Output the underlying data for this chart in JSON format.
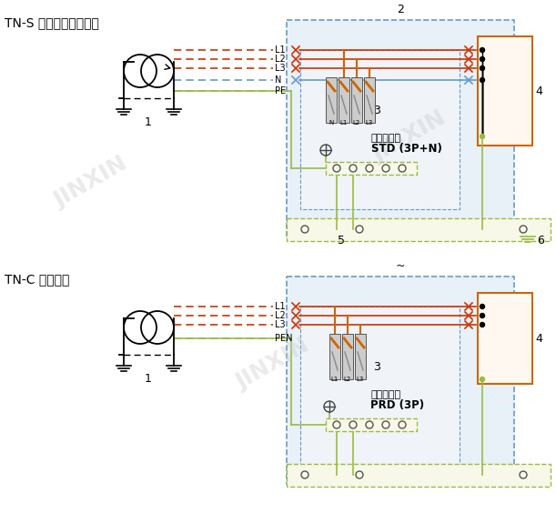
{
  "bg_color": "#ffffff",
  "watermark_color": "#d0d0d0",
  "title1": "TN-S 系统三相＋中性线",
  "title2": "TN-C 系统三相",
  "label_1": "1",
  "label_2": "2",
  "label_3": "3",
  "label_4": "4",
  "label_5": "5",
  "label_6": "6",
  "line_L1": "L1",
  "line_L2": "L2",
  "line_L3": "L3",
  "line_N": "N",
  "line_PE": "PE",
  "line_PEN": "PEN",
  "device1_text1": "电涌保护器",
  "device1_text2": "STD (3P+N)",
  "device2_text1": "电涌保护器",
  "device2_text2": "PRD (3P)",
  "red_color": "#cc3300",
  "blue_color": "#6699cc",
  "green_color": "#669900",
  "orange_color": "#cc6600",
  "black_color": "#000000",
  "box_border": "#cc6600",
  "dashed_box_color": "#6699cc",
  "pe_box_color": "#99bb44",
  "dark_red": "#cc3300"
}
